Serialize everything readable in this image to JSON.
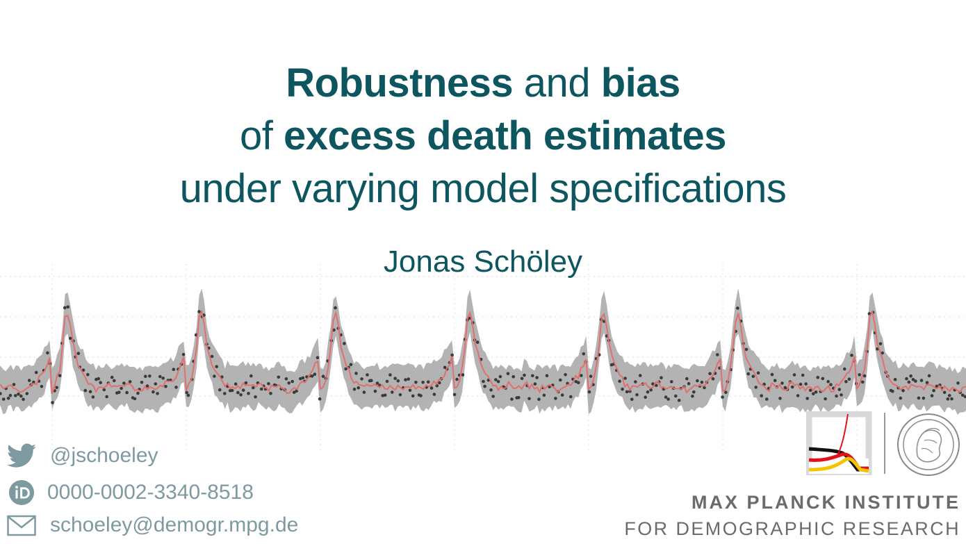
{
  "slide": {
    "title_lines": [
      [
        {
          "text": "Robustness",
          "bold": true
        },
        {
          "text": " and ",
          "bold": false
        },
        {
          "text": "bias",
          "bold": true
        }
      ],
      [
        {
          "text": "of ",
          "bold": false
        },
        {
          "text": "excess death estimates",
          "bold": true
        }
      ],
      [
        {
          "text": "under varying model specifications",
          "bold": false
        }
      ]
    ],
    "author": "Jonas Schöley"
  },
  "contacts": {
    "twitter": "@jschoeley",
    "orcid": "0000-0002-3340-8518",
    "email": "schoeley@demogr.mpg.de"
  },
  "institute": {
    "name_line1": "MAX PLANCK INSTITUTE",
    "name_line2": "FOR DEMOGRAPHIC RESEARCH"
  },
  "icons": {
    "twitter": "twitter-bird-icon",
    "orcid": "orcid-icon",
    "email": "envelope-icon",
    "logo": "mpidr-logo",
    "seal": "minerva-seal"
  },
  "colors": {
    "title": "#0d5660",
    "contact": "#7d9aa1",
    "band": "#b3b3b3",
    "trend": "#e0706e",
    "points": "#3a3a3a",
    "institute": "#6b6b6b"
  },
  "chart_data": {
    "type": "line",
    "description_visible": "seasonal weekly series with prediction band and observed points",
    "periods": 7,
    "points_per_period": 52,
    "trend": [
      0.0,
      0.04,
      0.12,
      0.28,
      0.55,
      0.9,
      1.0,
      0.82,
      0.6,
      0.45,
      0.35,
      0.25,
      0.18,
      0.12,
      0.08,
      0.05,
      0.03,
      0.02,
      0.02,
      0.03,
      0.04,
      0.05,
      0.04,
      0.03,
      0.02,
      0.02,
      0.03,
      0.05,
      0.06,
      0.05,
      0.04,
      0.03,
      0.02,
      0.01,
      0.01,
      0.02,
      0.03,
      0.02,
      0.01,
      0.0,
      0.0,
      0.01,
      0.02,
      0.03,
      0.05,
      0.07,
      0.1,
      0.14,
      0.19,
      0.25,
      0.32,
      0.4
    ],
    "band_halfwidth": 0.22
  }
}
